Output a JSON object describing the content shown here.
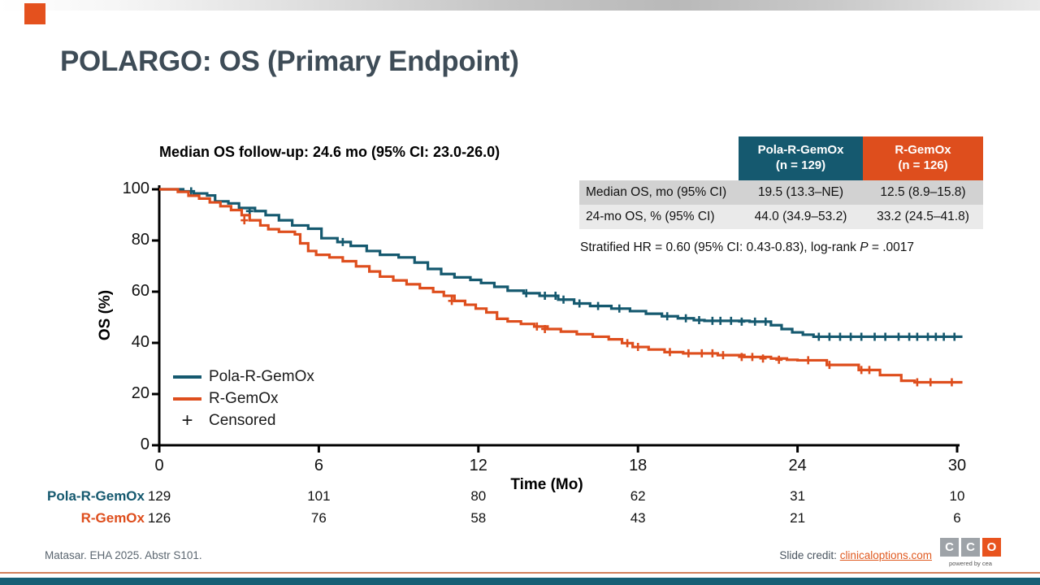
{
  "slide": {
    "title": "POLARGO: OS (Primary Endpoint)",
    "reference": "Matasar. EHA 2025. Abstr S101.",
    "credit_label": "Slide credit: ",
    "credit_link": "clinicaloptions.com",
    "logo": {
      "letters": [
        "C",
        "C",
        "O"
      ],
      "tagline": "powered by cea"
    }
  },
  "colors": {
    "teal": "#15596F",
    "orange": "#DE4E1D",
    "title_text": "#3E4C57",
    "row_dark": "#D2D2D2",
    "row_light": "#EAEAEA",
    "bottom_bar": "#175F75",
    "bottom_line": "#D3805A",
    "accent_square": "#E4511E"
  },
  "results_table": {
    "columns": [
      {
        "title": "Pola-R-GemOx",
        "subtitle": "(n = 129)",
        "color": "#15596F"
      },
      {
        "title": "R-GemOx",
        "subtitle": "(n = 126)",
        "color": "#DE4E1D"
      }
    ],
    "rows": [
      {
        "label": "Median OS, mo (95% CI)",
        "values": [
          "19.5 (13.3–NE)",
          "12.5 (8.9–15.8)"
        ]
      },
      {
        "label": "24-mo OS, % (95% CI)",
        "values": [
          "44.0 (34.9–53.2)",
          "33.2 (24.5–41.8)"
        ]
      }
    ]
  },
  "hr_note": {
    "text_before_p": "Stratified HR = 0.60 (95% CI: 0.43-0.83), log-rank ",
    "p": "P",
    "text_after_p": " = .0017"
  },
  "chart_data": {
    "type": "line",
    "subtype": "kaplan-meier-step",
    "title": "Median OS follow-up: 24.6 mo (95% CI: 23.0-26.0)",
    "xlabel": "Time (Mo)",
    "ylabel": "OS (%)",
    "xlim": [
      0,
      30
    ],
    "ylim": [
      0,
      100
    ],
    "xticks": [
      0,
      6,
      12,
      18,
      24,
      30
    ],
    "yticks": [
      100,
      80,
      60,
      40,
      20,
      0
    ],
    "grid": false,
    "legend_position": "inside-lower-left",
    "legend": [
      {
        "label": "Pola-R-GemOx",
        "swatch": "line",
        "color": "#15596F"
      },
      {
        "label": "R-GemOx",
        "swatch": "line",
        "color": "#DE4E1D"
      },
      {
        "label": "Censored",
        "swatch": "plus",
        "color": "#1a1a1a"
      }
    ],
    "series": [
      {
        "name": "Pola-R-GemOx",
        "color": "#15596F",
        "steps": [
          [
            0,
            100
          ],
          [
            0.9,
            99.2
          ],
          [
            1.3,
            98.4
          ],
          [
            1.8,
            97.6
          ],
          [
            2.1,
            95.3
          ],
          [
            2.6,
            94.5
          ],
          [
            3.0,
            92.7
          ],
          [
            3.6,
            91.5
          ],
          [
            4.0,
            89.9
          ],
          [
            4.5,
            87.9
          ],
          [
            5.0,
            85.9
          ],
          [
            5.6,
            84.6
          ],
          [
            6.1,
            80.9
          ],
          [
            6.7,
            79.4
          ],
          [
            7.2,
            77.9
          ],
          [
            7.8,
            75.9
          ],
          [
            8.3,
            74.4
          ],
          [
            9.0,
            73.4
          ],
          [
            9.6,
            71.4
          ],
          [
            10.1,
            68.9
          ],
          [
            10.6,
            66.9
          ],
          [
            11.1,
            65.6
          ],
          [
            11.7,
            64.6
          ],
          [
            12.1,
            63.4
          ],
          [
            12.6,
            61.9
          ],
          [
            13.1,
            60.4
          ],
          [
            13.7,
            59.4
          ],
          [
            14.3,
            58.4
          ],
          [
            15.0,
            56.9
          ],
          [
            15.6,
            55.4
          ],
          [
            16.2,
            54.4
          ],
          [
            17.0,
            53.4
          ],
          [
            17.7,
            52.4
          ],
          [
            18.3,
            51.4
          ],
          [
            18.9,
            50.4
          ],
          [
            19.5,
            49.6
          ],
          [
            20.1,
            48.9
          ],
          [
            20.5,
            48.6
          ],
          [
            22.2,
            48.3
          ],
          [
            23.0,
            46.9
          ],
          [
            23.4,
            45.4
          ],
          [
            23.8,
            44.1
          ],
          [
            24.2,
            43.2
          ],
          [
            24.6,
            42.4
          ],
          [
            30.2,
            42.4
          ]
        ],
        "censored": [
          [
            1.2,
            99.2
          ],
          [
            3.4,
            91.5
          ],
          [
            6.9,
            79.4
          ],
          [
            13.8,
            59.4
          ],
          [
            14.5,
            58.4
          ],
          [
            14.9,
            58.4
          ],
          [
            15.2,
            56.9
          ],
          [
            15.8,
            55.4
          ],
          [
            16.5,
            54.4
          ],
          [
            17.3,
            53.4
          ],
          [
            19.1,
            50.4
          ],
          [
            19.8,
            49.6
          ],
          [
            20.3,
            48.9
          ],
          [
            20.8,
            48.6
          ],
          [
            21.1,
            48.6
          ],
          [
            21.5,
            48.6
          ],
          [
            21.9,
            48.3
          ],
          [
            22.4,
            48.3
          ],
          [
            22.8,
            48.3
          ],
          [
            24.8,
            42.4
          ],
          [
            25.2,
            42.4
          ],
          [
            25.6,
            42.4
          ],
          [
            26.0,
            42.4
          ],
          [
            26.4,
            42.4
          ],
          [
            26.9,
            42.4
          ],
          [
            27.3,
            42.4
          ],
          [
            27.8,
            42.4
          ],
          [
            28.2,
            42.4
          ],
          [
            28.5,
            42.4
          ],
          [
            28.9,
            42.4
          ],
          [
            29.2,
            42.4
          ],
          [
            29.5,
            42.4
          ],
          [
            29.9,
            42.4
          ]
        ]
      },
      {
        "name": "R-GemOx",
        "color": "#DE4E1D",
        "steps": [
          [
            0,
            100
          ],
          [
            0.7,
            99
          ],
          [
            1.1,
            97.5
          ],
          [
            1.5,
            96.4
          ],
          [
            1.9,
            94.9
          ],
          [
            2.3,
            93.4
          ],
          [
            2.7,
            91.9
          ],
          [
            3.1,
            89.9
          ],
          [
            3.4,
            87.9
          ],
          [
            3.8,
            85.9
          ],
          [
            4.1,
            84.4
          ],
          [
            4.5,
            83.4
          ],
          [
            5.1,
            82.4
          ],
          [
            5.3,
            78.9
          ],
          [
            5.6,
            75.9
          ],
          [
            5.9,
            74.4
          ],
          [
            6.4,
            73.4
          ],
          [
            6.9,
            71.9
          ],
          [
            7.4,
            69.9
          ],
          [
            7.9,
            67.9
          ],
          [
            8.3,
            65.9
          ],
          [
            8.8,
            64.4
          ],
          [
            9.3,
            62.9
          ],
          [
            9.8,
            61.4
          ],
          [
            10.3,
            59.9
          ],
          [
            10.7,
            58.4
          ],
          [
            11.1,
            56.4
          ],
          [
            11.5,
            54.9
          ],
          [
            11.9,
            53.4
          ],
          [
            12.3,
            51.9
          ],
          [
            12.7,
            49.4
          ],
          [
            13.1,
            48.4
          ],
          [
            13.6,
            47.4
          ],
          [
            14.1,
            46.4
          ],
          [
            14.6,
            45.4
          ],
          [
            15.1,
            44.4
          ],
          [
            15.7,
            43.4
          ],
          [
            16.3,
            42.4
          ],
          [
            16.9,
            41.4
          ],
          [
            17.4,
            39.9
          ],
          [
            17.8,
            38.4
          ],
          [
            18.4,
            37.4
          ],
          [
            19.0,
            36.4
          ],
          [
            19.7,
            35.9
          ],
          [
            21.0,
            35.2
          ],
          [
            22.0,
            34.5
          ],
          [
            23.0,
            33.9
          ],
          [
            23.6,
            33.4
          ],
          [
            24.0,
            33.2
          ],
          [
            25.1,
            31.4
          ],
          [
            26.3,
            29.4
          ],
          [
            27.1,
            27.4
          ],
          [
            27.9,
            25.2
          ],
          [
            28.4,
            24.6
          ],
          [
            30.2,
            24.6
          ]
        ],
        "censored": [
          [
            3.2,
            87.9
          ],
          [
            11.0,
            56.4
          ],
          [
            14.2,
            46.4
          ],
          [
            14.5,
            45.4
          ],
          [
            17.6,
            39.9
          ],
          [
            18.0,
            38.4
          ],
          [
            19.2,
            36.4
          ],
          [
            19.9,
            35.9
          ],
          [
            20.4,
            35.9
          ],
          [
            20.8,
            35.9
          ],
          [
            21.2,
            35.2
          ],
          [
            21.9,
            34.5
          ],
          [
            22.3,
            34.5
          ],
          [
            22.7,
            33.9
          ],
          [
            23.3,
            33.4
          ],
          [
            24.4,
            33.2
          ],
          [
            25.2,
            31.4
          ],
          [
            26.4,
            29.4
          ],
          [
            26.7,
            29.4
          ],
          [
            28.5,
            24.6
          ],
          [
            29.0,
            24.6
          ],
          [
            29.8,
            24.6
          ]
        ]
      }
    ],
    "at_risk": {
      "rows": [
        {
          "label": "Pola-R-GemOx",
          "color": "#15596F",
          "values": [
            "129",
            "101",
            "80",
            "62",
            "31",
            "10"
          ]
        },
        {
          "label": "R-GemOx",
          "color": "#DE4E1D",
          "values": [
            "126",
            "76",
            "58",
            "43",
            "21",
            "6"
          ]
        }
      ]
    }
  }
}
